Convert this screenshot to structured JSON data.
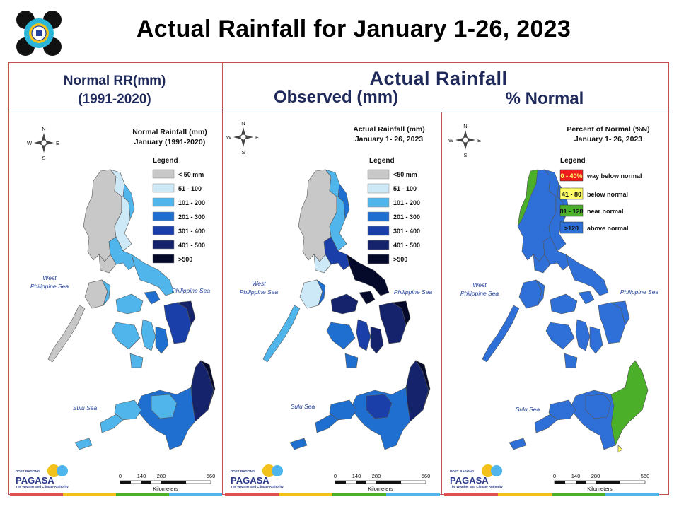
{
  "title": "Actual Rainfall for January 1-26, 2023",
  "headers": {
    "normal_line1": "Normal RR(mm)",
    "normal_line2": "(1991-2020)",
    "actual": "Actual Rainfall",
    "observed": "Observed (mm)",
    "percent": "% Normal"
  },
  "colors": {
    "frame": "#c0504d",
    "title_text": "#1f2a5a",
    "lt50": "#c8c8c8",
    "r51_100": "#cde8f6",
    "r101_200": "#4fb5ea",
    "r201_300": "#1f6fd0",
    "r301_400": "#1a3fa8",
    "r401_500": "#14236b",
    "gt500": "#050a2a",
    "pct_0_40": "#ee1c1c",
    "pct_41_80": "#ffff66",
    "pct_81_120": "#4caf2a",
    "pct_gt120": "#2f6fd8"
  },
  "panels": [
    {
      "title_line1": "Normal Rainfall (mm)",
      "title_line2": "January (1991-2020)",
      "legend_title": "Legend",
      "legend": [
        "< 50 mm",
        "51 - 100",
        "101 - 200",
        "201 - 300",
        "301 - 400",
        "401 - 500",
        ">500"
      ]
    },
    {
      "title_line1": "Actual Rainfall (mm)",
      "title_line2": "January 1- 26, 2023",
      "legend_title": "Legend",
      "legend": [
        "<50 mm",
        "51 - 100",
        "101 - 200",
        "201 - 300",
        "301 - 400",
        "401 - 500",
        ">500"
      ]
    },
    {
      "title_line1": "Percent of Normal (%N)",
      "title_line2": "January 1- 26, 2023",
      "legend_title": "Legend",
      "legend_boxes": [
        "0 - 40%",
        "41 - 80",
        "81 - 120",
        ">120"
      ],
      "legend_labels": [
        "way below normal",
        "below normal",
        "near normal",
        "above normal"
      ]
    }
  ],
  "map_labels": {
    "west_sea_1": "West",
    "west_sea_2": "Philippine Sea",
    "east_sea": "Philippine Sea",
    "sulu_sea": "Sulu Sea"
  },
  "compass": {
    "n": "N",
    "s": "S",
    "e": "E",
    "w": "W"
  },
  "scale": {
    "ticks": [
      "0",
      "140",
      "280",
      "560"
    ],
    "unit": "Kilometers"
  },
  "pagasa": {
    "dost": "DOST",
    "bagong": "BAGONG",
    "name": "PAGASA",
    "tagline": "The Weather and Climate Authority"
  }
}
